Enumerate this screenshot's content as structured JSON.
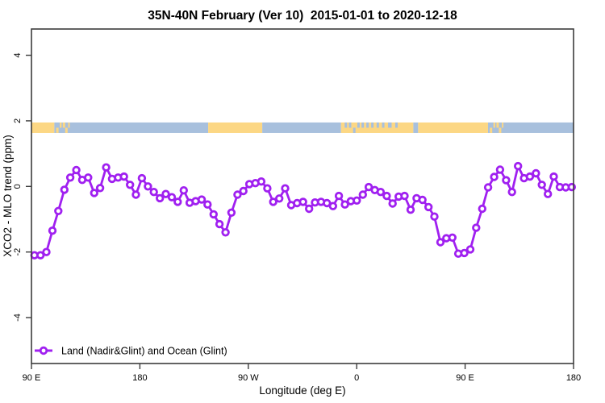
{
  "chart_data": {
    "type": "line",
    "title": "35N-40N February (Ver 10)  2015-01-01 to 2020-12-18",
    "xlabel": "Longitude (deg E)",
    "ylabel": "XCO2 - MLO trend (ppm)",
    "xlim": [
      90,
      540
    ],
    "ylim": [
      -5.4,
      4.8
    ],
    "grid": false,
    "x_ticks": [
      {
        "pos": 90,
        "label": "90 E"
      },
      {
        "pos": 180,
        "label": "180"
      },
      {
        "pos": 270,
        "label": "90 W"
      },
      {
        "pos": 360,
        "label": "0"
      },
      {
        "pos": 450,
        "label": "90 E"
      },
      {
        "pos": 540,
        "label": "180"
      }
    ],
    "y_ticks": [
      {
        "pos": 4,
        "label": "4"
      },
      {
        "pos": 2,
        "label": "2"
      },
      {
        "pos": 0,
        "label": "0"
      },
      {
        "pos": -2,
        "label": "-2"
      },
      {
        "pos": -4,
        "label": "-4"
      }
    ],
    "legend": {
      "position": "bottom-left",
      "entries": [
        {
          "label": "Land (Nadir&Glint) and Ocean (Glint)",
          "color": "#A020F0",
          "marker": "open-circle"
        }
      ]
    },
    "series": [
      {
        "name": "Land (Nadir&Glint) and Ocean (Glint)",
        "color": "#A020F0",
        "x": [
          92.5,
          97.5,
          102.4,
          107.4,
          112.3,
          117.3,
          122.2,
          127.2,
          132.1,
          137.1,
          142.1,
          147.0,
          152.0,
          156.9,
          161.9,
          166.8,
          171.8,
          176.7,
          181.7,
          186.7,
          191.6,
          196.6,
          201.5,
          206.5,
          211.4,
          216.4,
          221.3,
          226.3,
          231.3,
          236.2,
          241.2,
          246.1,
          251.1,
          256.0,
          261.0,
          265.9,
          270.9,
          275.9,
          280.8,
          285.8,
          290.7,
          295.7,
          300.6,
          305.6,
          310.5,
          315.5,
          320.5,
          325.4,
          330.4,
          335.3,
          340.3,
          345.2,
          350.2,
          355.1,
          360.1,
          365.1,
          370.0,
          375.0,
          379.9,
          384.9,
          389.8,
          394.8,
          399.7,
          404.7,
          409.7,
          414.6,
          419.6,
          424.5,
          429.5,
          434.4,
          439.4,
          444.3,
          449.3,
          454.3,
          459.2,
          464.2,
          469.1,
          474.1,
          479.0,
          484.0,
          488.9,
          493.9,
          498.9,
          503.8,
          508.8,
          513.7,
          518.7,
          523.6,
          528.6,
          533.5,
          538.5
        ],
        "y": [
          -2.1,
          -2.1,
          -2.0,
          -1.35,
          -0.75,
          -0.1,
          0.27,
          0.5,
          0.2,
          0.27,
          -0.2,
          -0.05,
          0.58,
          0.23,
          0.27,
          0.3,
          0.05,
          -0.25,
          0.25,
          0.0,
          -0.17,
          -0.36,
          -0.23,
          -0.33,
          -0.47,
          -0.12,
          -0.5,
          -0.45,
          -0.4,
          -0.55,
          -0.85,
          -1.15,
          -1.4,
          -0.8,
          -0.25,
          -0.14,
          0.07,
          0.1,
          0.15,
          -0.06,
          -0.47,
          -0.37,
          -0.06,
          -0.57,
          -0.51,
          -0.47,
          -0.68,
          -0.49,
          -0.47,
          -0.51,
          -0.6,
          -0.29,
          -0.55,
          -0.45,
          -0.43,
          -0.25,
          -0.02,
          -0.11,
          -0.17,
          -0.29,
          -0.52,
          -0.31,
          -0.29,
          -0.71,
          -0.36,
          -0.41,
          -0.63,
          -0.92,
          -1.7,
          -1.58,
          -1.56,
          -2.05,
          -2.03,
          -1.92,
          -1.26,
          -0.68,
          -0.03,
          0.29,
          0.51,
          0.19,
          -0.17,
          0.62,
          0.25,
          0.3,
          0.4,
          0.05,
          -0.23,
          0.3,
          -0.02,
          -0.03,
          -0.02
        ]
      }
    ],
    "map_strip": {
      "description": "land/ocean world strip for 35N-40N latitude band",
      "land_color": "#FCD784",
      "ocean_color": "#A8C0DD",
      "y_range_ppm": [
        1.63,
        1.95
      ],
      "segments": [
        {
          "from": 90,
          "to": 109,
          "type": "land"
        },
        {
          "from": 109,
          "to": 236.7,
          "type": "ocean"
        },
        {
          "from": 236.7,
          "to": 281.6,
          "type": "land"
        },
        {
          "from": 281.6,
          "to": 347,
          "type": "ocean"
        },
        {
          "from": 347,
          "to": 407,
          "type": "land"
        },
        {
          "from": 407,
          "to": 411,
          "type": "ocean"
        },
        {
          "from": 411,
          "to": 469,
          "type": "land"
        },
        {
          "from": 469,
          "to": 540,
          "type": "ocean"
        }
      ],
      "speckles": [
        {
          "from": 110.5,
          "to": 112.5,
          "half": "bottom",
          "type": "land"
        },
        {
          "from": 113.5,
          "to": 115,
          "half": "top",
          "type": "land"
        },
        {
          "from": 116,
          "to": 118,
          "half": "top",
          "type": "land"
        },
        {
          "from": 118,
          "to": 120,
          "half": "bottom",
          "type": "land"
        },
        {
          "from": 120.5,
          "to": 121.8,
          "half": "top",
          "type": "land"
        },
        {
          "from": 350,
          "to": 352,
          "half": "top",
          "type": "ocean"
        },
        {
          "from": 353.5,
          "to": 355.5,
          "half": "top",
          "type": "ocean"
        },
        {
          "from": 357,
          "to": 359,
          "half": "bottom",
          "type": "ocean"
        },
        {
          "from": 360.5,
          "to": 362.5,
          "half": "top",
          "type": "ocean"
        },
        {
          "from": 364,
          "to": 366,
          "half": "top",
          "type": "ocean"
        },
        {
          "from": 368,
          "to": 370,
          "half": "top",
          "type": "ocean"
        },
        {
          "from": 372,
          "to": 374,
          "half": "top",
          "type": "ocean"
        },
        {
          "from": 376.5,
          "to": 378.5,
          "half": "top",
          "type": "ocean"
        },
        {
          "from": 381,
          "to": 383,
          "half": "top",
          "type": "ocean"
        },
        {
          "from": 386,
          "to": 389,
          "half": "top",
          "type": "ocean"
        },
        {
          "from": 392,
          "to": 394,
          "half": "top",
          "type": "ocean"
        },
        {
          "from": 470.5,
          "to": 472.5,
          "half": "bottom",
          "type": "land"
        },
        {
          "from": 473.5,
          "to": 475,
          "half": "top",
          "type": "land"
        },
        {
          "from": 476,
          "to": 478,
          "half": "top",
          "type": "land"
        },
        {
          "from": 478,
          "to": 480,
          "half": "bottom",
          "type": "land"
        },
        {
          "from": 480.5,
          "to": 481.8,
          "half": "top",
          "type": "land"
        }
      ]
    },
    "colors": {
      "line": "#A020F0",
      "marker_fill": "#ffffff",
      "axis": "#3c3c3c",
      "text": "#000000"
    }
  }
}
